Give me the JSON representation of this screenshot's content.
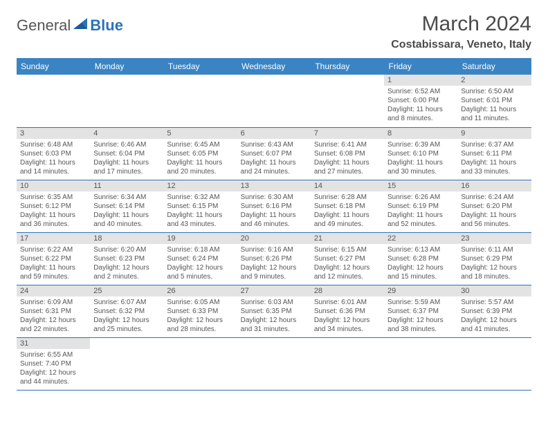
{
  "logo": {
    "text1": "General",
    "text2": "Blue"
  },
  "title": "March 2024",
  "location": "Costabissara, Veneto, Italy",
  "colors": {
    "header_bg": "#3a84c4",
    "header_text": "#ffffff",
    "border": "#2c72b8",
    "daynum_bg": "#e3e3e3",
    "text": "#555555"
  },
  "day_headers": [
    "Sunday",
    "Monday",
    "Tuesday",
    "Wednesday",
    "Thursday",
    "Friday",
    "Saturday"
  ],
  "weeks": [
    [
      null,
      null,
      null,
      null,
      null,
      {
        "n": "1",
        "r": "6:52 AM",
        "s": "6:00 PM",
        "d": "11 hours and 8 minutes."
      },
      {
        "n": "2",
        "r": "6:50 AM",
        "s": "6:01 PM",
        "d": "11 hours and 11 minutes."
      }
    ],
    [
      {
        "n": "3",
        "r": "6:48 AM",
        "s": "6:03 PM",
        "d": "11 hours and 14 minutes."
      },
      {
        "n": "4",
        "r": "6:46 AM",
        "s": "6:04 PM",
        "d": "11 hours and 17 minutes."
      },
      {
        "n": "5",
        "r": "6:45 AM",
        "s": "6:05 PM",
        "d": "11 hours and 20 minutes."
      },
      {
        "n": "6",
        "r": "6:43 AM",
        "s": "6:07 PM",
        "d": "11 hours and 24 minutes."
      },
      {
        "n": "7",
        "r": "6:41 AM",
        "s": "6:08 PM",
        "d": "11 hours and 27 minutes."
      },
      {
        "n": "8",
        "r": "6:39 AM",
        "s": "6:10 PM",
        "d": "11 hours and 30 minutes."
      },
      {
        "n": "9",
        "r": "6:37 AM",
        "s": "6:11 PM",
        "d": "11 hours and 33 minutes."
      }
    ],
    [
      {
        "n": "10",
        "r": "6:35 AM",
        "s": "6:12 PM",
        "d": "11 hours and 36 minutes."
      },
      {
        "n": "11",
        "r": "6:34 AM",
        "s": "6:14 PM",
        "d": "11 hours and 40 minutes."
      },
      {
        "n": "12",
        "r": "6:32 AM",
        "s": "6:15 PM",
        "d": "11 hours and 43 minutes."
      },
      {
        "n": "13",
        "r": "6:30 AM",
        "s": "6:16 PM",
        "d": "11 hours and 46 minutes."
      },
      {
        "n": "14",
        "r": "6:28 AM",
        "s": "6:18 PM",
        "d": "11 hours and 49 minutes."
      },
      {
        "n": "15",
        "r": "6:26 AM",
        "s": "6:19 PM",
        "d": "11 hours and 52 minutes."
      },
      {
        "n": "16",
        "r": "6:24 AM",
        "s": "6:20 PM",
        "d": "11 hours and 56 minutes."
      }
    ],
    [
      {
        "n": "17",
        "r": "6:22 AM",
        "s": "6:22 PM",
        "d": "11 hours and 59 minutes."
      },
      {
        "n": "18",
        "r": "6:20 AM",
        "s": "6:23 PM",
        "d": "12 hours and 2 minutes."
      },
      {
        "n": "19",
        "r": "6:18 AM",
        "s": "6:24 PM",
        "d": "12 hours and 5 minutes."
      },
      {
        "n": "20",
        "r": "6:16 AM",
        "s": "6:26 PM",
        "d": "12 hours and 9 minutes."
      },
      {
        "n": "21",
        "r": "6:15 AM",
        "s": "6:27 PM",
        "d": "12 hours and 12 minutes."
      },
      {
        "n": "22",
        "r": "6:13 AM",
        "s": "6:28 PM",
        "d": "12 hours and 15 minutes."
      },
      {
        "n": "23",
        "r": "6:11 AM",
        "s": "6:29 PM",
        "d": "12 hours and 18 minutes."
      }
    ],
    [
      {
        "n": "24",
        "r": "6:09 AM",
        "s": "6:31 PM",
        "d": "12 hours and 22 minutes."
      },
      {
        "n": "25",
        "r": "6:07 AM",
        "s": "6:32 PM",
        "d": "12 hours and 25 minutes."
      },
      {
        "n": "26",
        "r": "6:05 AM",
        "s": "6:33 PM",
        "d": "12 hours and 28 minutes."
      },
      {
        "n": "27",
        "r": "6:03 AM",
        "s": "6:35 PM",
        "d": "12 hours and 31 minutes."
      },
      {
        "n": "28",
        "r": "6:01 AM",
        "s": "6:36 PM",
        "d": "12 hours and 34 minutes."
      },
      {
        "n": "29",
        "r": "5:59 AM",
        "s": "6:37 PM",
        "d": "12 hours and 38 minutes."
      },
      {
        "n": "30",
        "r": "5:57 AM",
        "s": "6:39 PM",
        "d": "12 hours and 41 minutes."
      }
    ],
    [
      {
        "n": "31",
        "r": "6:55 AM",
        "s": "7:40 PM",
        "d": "12 hours and 44 minutes."
      },
      null,
      null,
      null,
      null,
      null,
      null
    ]
  ],
  "labels": {
    "sunrise": "Sunrise:",
    "sunset": "Sunset:",
    "daylight": "Daylight:"
  }
}
